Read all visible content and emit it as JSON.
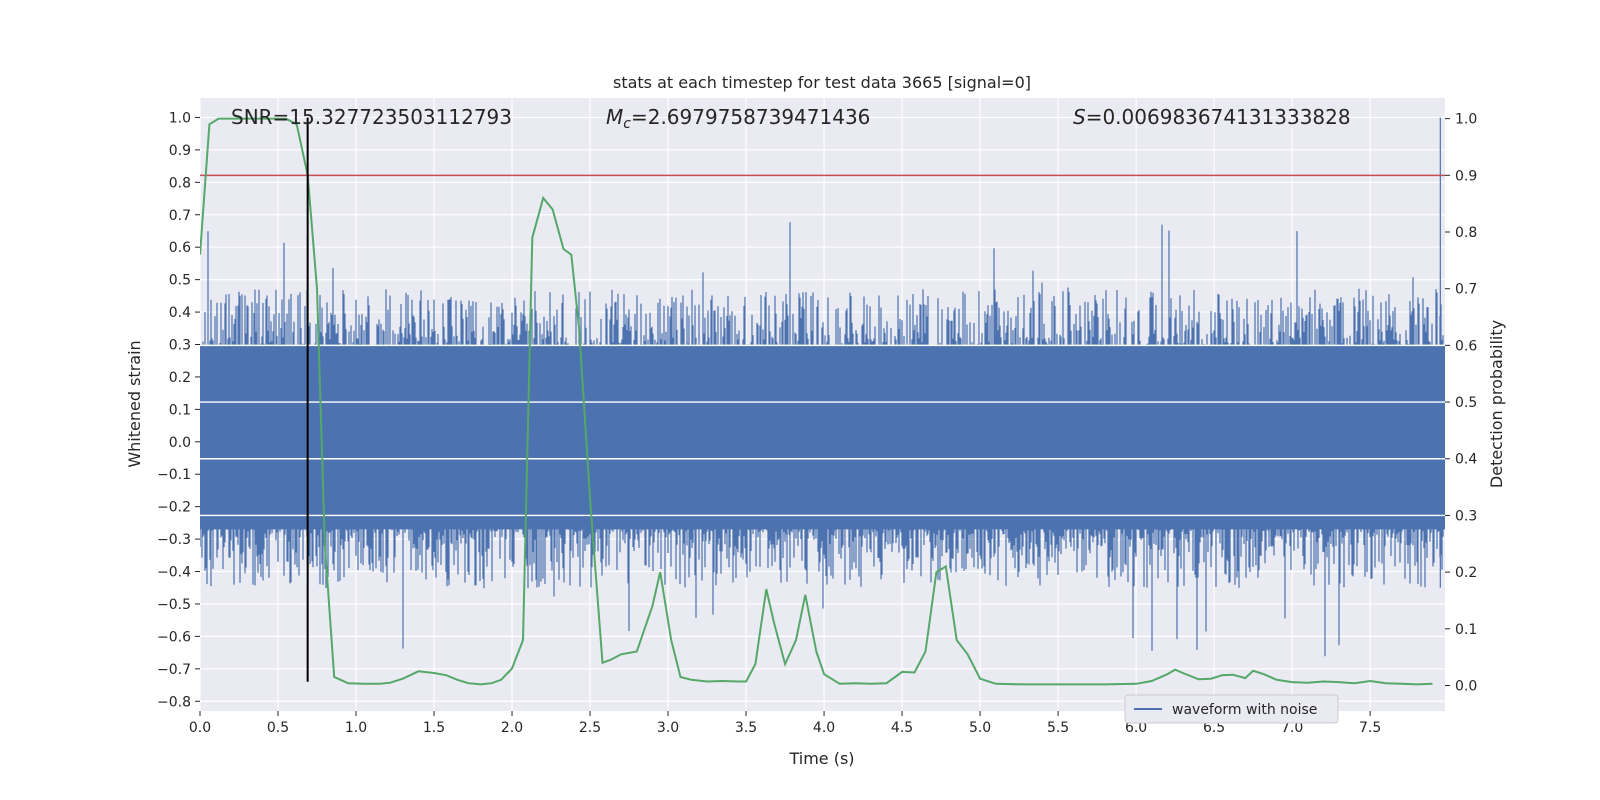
{
  "chart_data": {
    "type": "line",
    "title": "stats at each timestep for test data 3665 [signal=0]",
    "xlabel": "Time (s)",
    "ylabel_left": "Whitened strain",
    "ylabel_right": "Detection probability",
    "xlim": [
      0.0,
      7.98
    ],
    "ylim_left": [
      -0.83,
      1.06
    ],
    "ylim_right": [
      -0.045,
      1.0364
    ],
    "x_ticks": [
      0.0,
      0.5,
      1.0,
      1.5,
      2.0,
      2.5,
      3.0,
      3.5,
      4.0,
      4.5,
      5.0,
      5.5,
      6.0,
      6.5,
      7.0,
      7.5
    ],
    "x_tick_labels": [
      "0.0",
      "0.5",
      "1.0",
      "1.5",
      "2.0",
      "2.5",
      "3.0",
      "3.5",
      "4.0",
      "4.5",
      "5.0",
      "5.5",
      "6.0",
      "6.5",
      "7.0",
      "7.5"
    ],
    "y_left_ticks": [
      1.0,
      0.9,
      0.8,
      0.7,
      0.6,
      0.5,
      0.4,
      0.3,
      0.2,
      0.1,
      0.0,
      -0.1,
      -0.2,
      -0.3,
      -0.4,
      -0.5,
      -0.6,
      -0.7,
      -0.8
    ],
    "y_left_tick_labels": [
      "1.0",
      "0.9",
      "0.8",
      "0.7",
      "0.6",
      "0.5",
      "0.4",
      "0.3",
      "0.2",
      "0.1",
      "0.0",
      "−0.1",
      "−0.2",
      "−0.3",
      "−0.4",
      "−0.5",
      "−0.6",
      "−0.7",
      "−0.8"
    ],
    "y_right_ticks": [
      1.0,
      0.9,
      0.8,
      0.7,
      0.6,
      0.5,
      0.4,
      0.3,
      0.2,
      0.1,
      0.0
    ],
    "y_right_tick_labels": [
      "1.0",
      "0.9",
      "0.8",
      "0.7",
      "0.6",
      "0.5",
      "0.4",
      "0.3",
      "0.2",
      "0.1",
      "0.0"
    ],
    "grid": true,
    "legend": {
      "position": "bottom-right",
      "entries": [
        "waveform with noise"
      ]
    },
    "annotations": {
      "snr": "SNR=15.327723503112793",
      "mc_prefix": "M",
      "mc_subscript": "c",
      "mc_value": "=2.6979758739471436",
      "s_prefix": "S",
      "s_value": "=0.006983674131333828"
    },
    "threshold_line": {
      "axis": "right",
      "y": 0.9,
      "color": "#c44e52"
    },
    "vertical_marker": {
      "x": 0.69,
      "color": "#000000"
    },
    "series": [
      {
        "name": "waveform with noise",
        "axis": "left",
        "color": "#4c72b0",
        "noise_envelope": {
          "typical_high": 0.4,
          "typical_low": -0.38,
          "max_high": 1.0,
          "min_low": -0.74
        }
      },
      {
        "axis": "right",
        "color": "#55a868",
        "x": [
          0.0,
          0.06,
          0.12,
          0.25,
          0.4,
          0.55,
          0.62,
          0.69,
          0.75,
          0.8,
          0.86,
          0.95,
          1.05,
          1.15,
          1.22,
          1.3,
          1.4,
          1.5,
          1.58,
          1.65,
          1.72,
          1.8,
          1.87,
          1.93,
          2.0,
          2.07,
          2.13,
          2.2,
          2.26,
          2.33,
          2.38,
          2.43,
          2.5,
          2.58,
          2.63,
          2.7,
          2.8,
          2.9,
          2.95,
          3.02,
          3.08,
          3.15,
          3.25,
          3.35,
          3.45,
          3.5,
          3.56,
          3.63,
          3.68,
          3.75,
          3.82,
          3.88,
          3.95,
          4.0,
          4.1,
          4.2,
          4.3,
          4.4,
          4.5,
          4.58,
          4.65,
          4.72,
          4.78,
          4.85,
          4.92,
          5.0,
          5.1,
          5.3,
          5.5,
          5.8,
          6.0,
          6.1,
          6.2,
          6.25,
          6.3,
          6.4,
          6.48,
          6.55,
          6.62,
          6.7,
          6.75,
          6.82,
          6.9,
          7.0,
          7.1,
          7.2,
          7.3,
          7.4,
          7.5,
          7.6,
          7.7,
          7.8,
          7.9
        ],
        "values": [
          0.76,
          0.99,
          1.0,
          1.0,
          1.0,
          1.0,
          0.99,
          0.9,
          0.7,
          0.25,
          0.015,
          0.004,
          0.003,
          0.003,
          0.005,
          0.012,
          0.025,
          0.022,
          0.018,
          0.01,
          0.004,
          0.002,
          0.004,
          0.01,
          0.03,
          0.08,
          0.79,
          0.86,
          0.84,
          0.77,
          0.76,
          0.63,
          0.33,
          0.04,
          0.045,
          0.055,
          0.06,
          0.14,
          0.2,
          0.08,
          0.015,
          0.01,
          0.007,
          0.008,
          0.007,
          0.007,
          0.038,
          0.17,
          0.11,
          0.038,
          0.08,
          0.16,
          0.06,
          0.02,
          0.003,
          0.004,
          0.003,
          0.004,
          0.024,
          0.023,
          0.06,
          0.2,
          0.21,
          0.08,
          0.055,
          0.012,
          0.003,
          0.002,
          0.002,
          0.002,
          0.003,
          0.008,
          0.02,
          0.028,
          0.022,
          0.011,
          0.012,
          0.018,
          0.019,
          0.013,
          0.026,
          0.02,
          0.01,
          0.006,
          0.005,
          0.007,
          0.006,
          0.004,
          0.008,
          0.004,
          0.003,
          0.002,
          0.003
        ]
      }
    ]
  }
}
